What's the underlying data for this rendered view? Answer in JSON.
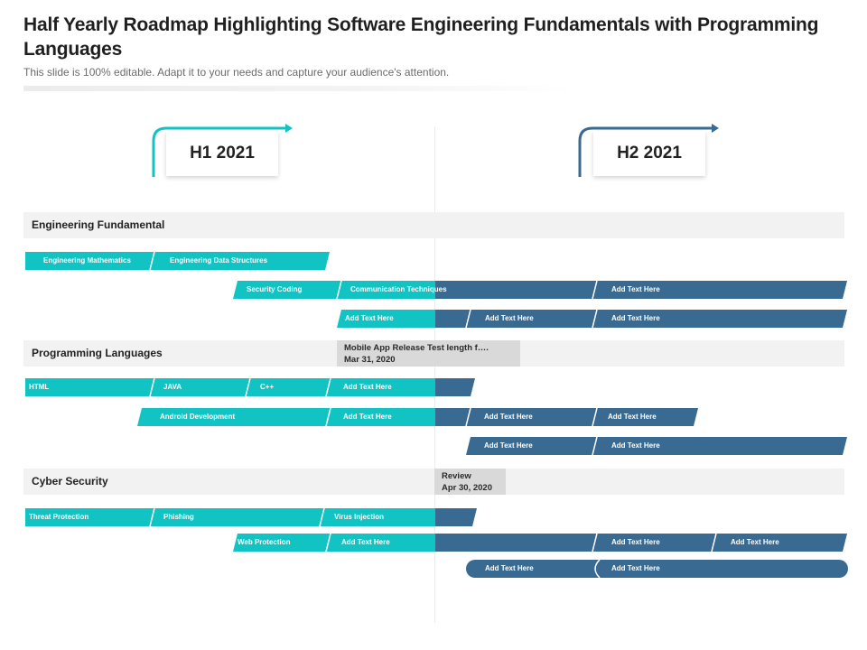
{
  "header": {
    "title": "Half Yearly Roadmap Highlighting Software Engineering Fundamentals with Programming Languages",
    "subtitle": "This slide is 100% editable. Adapt it to your needs and capture your audience's attention."
  },
  "halves": {
    "h1": "H1 2021",
    "h2": "H2 2021"
  },
  "sections": {
    "engineering": "Engineering  Fundamental",
    "programming": "Programming Languages",
    "cyber": "Cyber Security"
  },
  "milestones": {
    "mobile": {
      "line1": "Mobile App Release Test length f….",
      "line2": "Mar 31, 2020"
    },
    "review": {
      "line1": "Review",
      "line2": "Apr 30, 2020"
    }
  },
  "colors": {
    "teal": "#12c3c3",
    "blue": "#396a92",
    "section_bg": "#f2f2f2",
    "milestone_bg": "#d9d9d9",
    "bracket_h1": "#12c3c3",
    "bracket_h2": "#396a92"
  },
  "rows": {
    "r1": [
      "Engineering Mathematics",
      "Engineering Data Structures"
    ],
    "r2": [
      "Security Coding",
      "Communication Techniques",
      "Add Text Here"
    ],
    "r3": [
      "Add Text Here",
      "Add Text Here",
      "Add Text Here"
    ],
    "r4": [
      "HTML",
      "JAVA",
      "C++",
      "Add Text Here"
    ],
    "r5": [
      "Android Development",
      "Add Text Here",
      "Add Text Here",
      "Add Text Here"
    ],
    "r6": [
      "Add Text Here",
      "Add Text Here"
    ],
    "r7": [
      "Threat Protection",
      "Phishing",
      "Virus Injection"
    ],
    "r8": [
      "Web Protection",
      "Add Text Here",
      "Add Text Here",
      "Add Text Here"
    ],
    "r9": [
      "Add Text Here",
      "Add Text Here"
    ]
  }
}
